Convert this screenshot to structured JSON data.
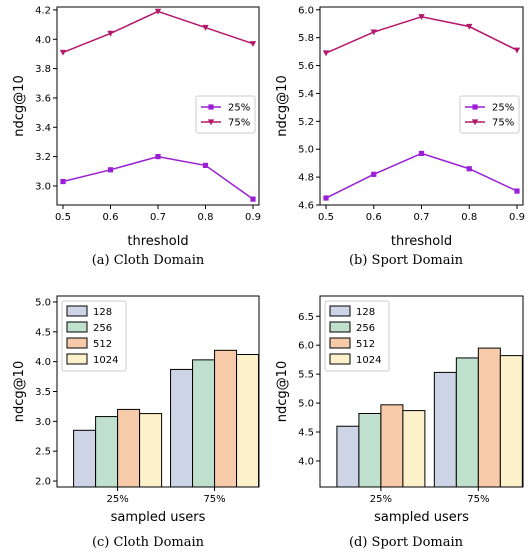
{
  "colors": {
    "line_25": "#9a1fd6",
    "line_75": "#b5176a",
    "bar_128": "#ccd4e6",
    "bar_256": "#bfe0cc",
    "bar_512": "#f7cba9",
    "bar_1024": "#fdf1cc"
  },
  "chart_data": [
    {
      "type": "line",
      "caption": "(a)  Cloth Domain",
      "xlabel": "threshold",
      "ylabel": "ndcg@10",
      "x": [
        0.5,
        0.6,
        0.7,
        0.8,
        0.9
      ],
      "xticks": [
        "0.5",
        "0.6",
        "0.7",
        "0.8",
        "0.9"
      ],
      "xlim": [
        0.5,
        0.9
      ],
      "ylim": [
        2.87,
        4.22
      ],
      "yticks": [
        "3.0",
        "3.2",
        "3.4",
        "3.6",
        "3.8",
        "4.0",
        "4.2"
      ],
      "grid": false,
      "legend": "center-right",
      "series": [
        {
          "name": "25%",
          "marker": "square",
          "values": [
            3.03,
            3.11,
            3.2,
            3.14,
            2.91
          ]
        },
        {
          "name": "75%",
          "marker": "triangle-down",
          "values": [
            3.91,
            4.04,
            4.19,
            4.08,
            3.97
          ]
        }
      ]
    },
    {
      "type": "line",
      "caption": "(b)  Sport Domain",
      "xlabel": "threshold",
      "ylabel": "ndcg@10",
      "x": [
        0.5,
        0.6,
        0.7,
        0.8,
        0.9
      ],
      "xticks": [
        "0.5",
        "0.6",
        "0.7",
        "0.8",
        "0.9"
      ],
      "xlim": [
        0.5,
        0.9
      ],
      "ylim": [
        4.6,
        6.02
      ],
      "yticks": [
        "4.6",
        "4.8",
        "5.0",
        "5.2",
        "5.4",
        "5.6",
        "5.8",
        "6.0"
      ],
      "grid": false,
      "legend": "center-right",
      "series": [
        {
          "name": "25%",
          "marker": "square",
          "values": [
            4.65,
            4.82,
            4.97,
            4.86,
            4.7
          ]
        },
        {
          "name": "75%",
          "marker": "triangle-down",
          "values": [
            5.69,
            5.84,
            5.95,
            5.88,
            5.71
          ]
        }
      ]
    },
    {
      "type": "bar",
      "caption": "(c)  Cloth Domain",
      "xlabel": "sampled users",
      "ylabel": "ndcg@10",
      "categories": [
        "25%",
        "75%"
      ],
      "ylim": [
        1.9,
        5.1
      ],
      "yticks": [
        "2.0",
        "2.5",
        "3.0",
        "3.5",
        "4.0",
        "4.5",
        "5.0"
      ],
      "grid": false,
      "legend": "top-left",
      "series": [
        {
          "name": "128",
          "values": [
            2.85,
            3.87
          ]
        },
        {
          "name": "256",
          "values": [
            3.08,
            4.03
          ]
        },
        {
          "name": "512",
          "values": [
            3.2,
            4.19
          ]
        },
        {
          "name": "1024",
          "values": [
            3.13,
            4.12
          ]
        }
      ]
    },
    {
      "type": "bar",
      "caption": "(d)  Sport Domain",
      "xlabel": "sampled users",
      "ylabel": "ndcg@10",
      "categories": [
        "25%",
        "75%"
      ],
      "ylim": [
        3.55,
        6.85
      ],
      "yticks": [
        "4.0",
        "4.5",
        "5.0",
        "5.5",
        "6.0",
        "6.5"
      ],
      "grid": false,
      "legend": "top-left",
      "series": [
        {
          "name": "128",
          "values": [
            4.6,
            5.53
          ]
        },
        {
          "name": "256",
          "values": [
            4.82,
            5.78
          ]
        },
        {
          "name": "512",
          "values": [
            4.97,
            5.95
          ]
        },
        {
          "name": "1024",
          "values": [
            4.87,
            5.82
          ]
        }
      ]
    }
  ]
}
